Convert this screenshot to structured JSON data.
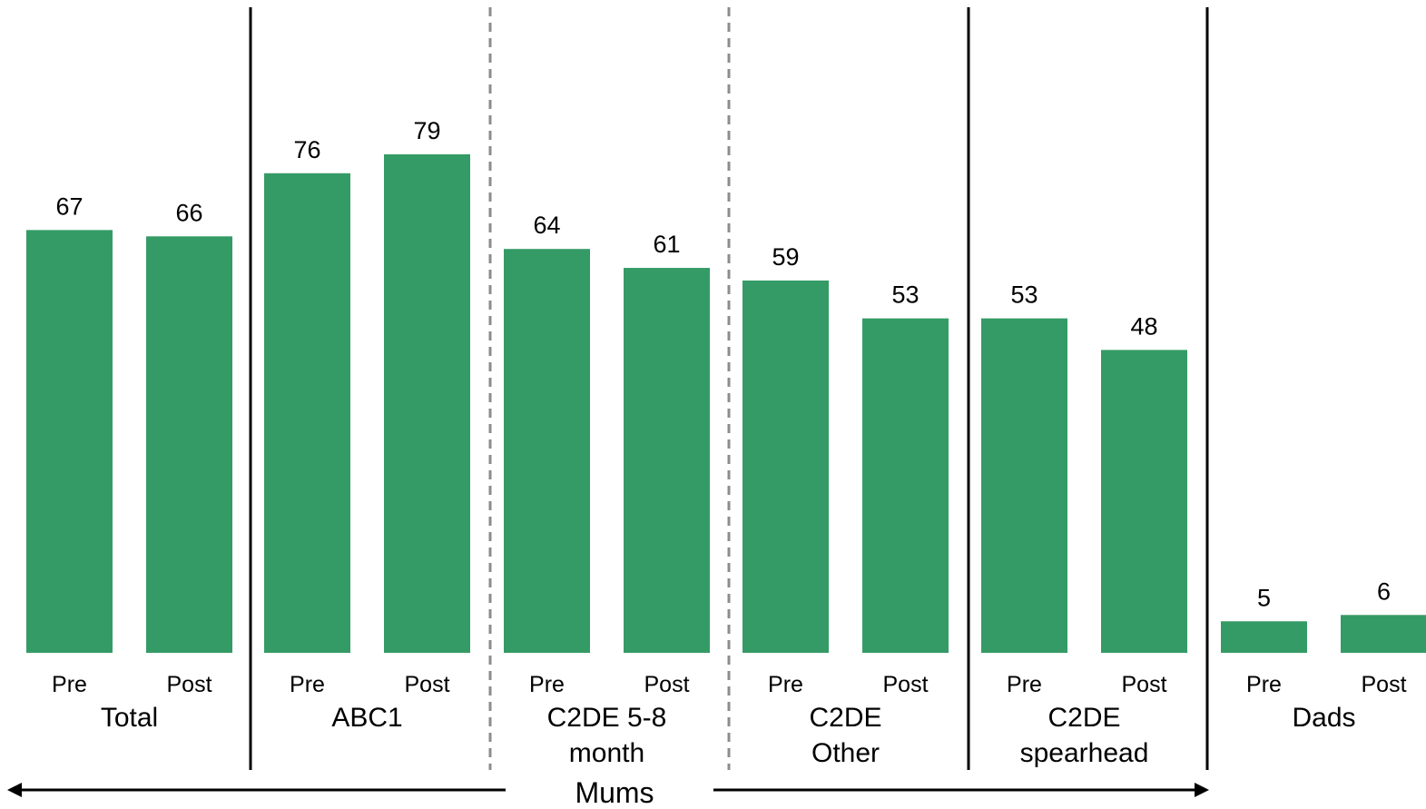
{
  "chart_data": {
    "type": "bar",
    "bar_color": "#359b66",
    "groups": [
      {
        "label_lines": [
          "Total"
        ],
        "categories": [
          "Pre",
          "Post"
        ],
        "values": [
          67,
          66
        ]
      },
      {
        "label_lines": [
          "ABC1"
        ],
        "categories": [
          "Pre",
          "Post"
        ],
        "values": [
          76,
          79
        ]
      },
      {
        "label_lines": [
          "C2DE 5-8",
          "month"
        ],
        "categories": [
          "Pre",
          "Post"
        ],
        "values": [
          64,
          61
        ]
      },
      {
        "label_lines": [
          "C2DE",
          "Other"
        ],
        "categories": [
          "Pre",
          "Post"
        ],
        "values": [
          59,
          53
        ]
      },
      {
        "label_lines": [
          "C2DE",
          "spearhead"
        ],
        "categories": [
          "Pre",
          "Post"
        ],
        "values": [
          53,
          48
        ]
      },
      {
        "label_lines": [
          "Dads"
        ],
        "categories": [
          "Pre",
          "Post"
        ],
        "values": [
          5,
          6
        ]
      }
    ],
    "span_label": "Mums",
    "ylim": [
      0,
      100
    ]
  }
}
